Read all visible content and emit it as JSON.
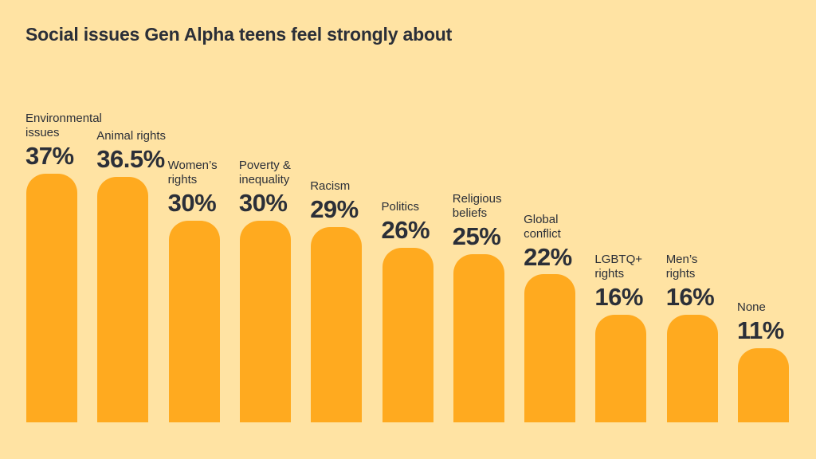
{
  "chart_data": {
    "type": "bar",
    "title": "Social issues Gen Alpha teens feel strongly about",
    "categories": [
      [
        "Environmental",
        "issues"
      ],
      [
        "Animal rights"
      ],
      [
        "Women’s",
        "rights"
      ],
      [
        "Poverty &",
        "inequality"
      ],
      [
        "Racism"
      ],
      [
        "Politics"
      ],
      [
        "Religious",
        "beliefs"
      ],
      [
        "Global",
        "conflict"
      ],
      [
        "LGBTQ+",
        "rights"
      ],
      [
        "Men’s",
        "rights"
      ],
      [
        "None"
      ]
    ],
    "values": [
      37,
      36.5,
      30,
      30,
      29,
      26,
      25,
      22,
      16,
      16,
      11
    ],
    "value_labels": [
      "37%",
      "36.5%",
      "30%",
      "30%",
      "29%",
      "26%",
      "25%",
      "22%",
      "16%",
      "16%",
      "11%"
    ],
    "ylim": [
      0,
      37
    ],
    "xlabel": "",
    "ylabel": "",
    "grid": false,
    "colors": {
      "background": "#FFE3A3",
      "bar": "#FFAA1F",
      "text": "#2b2f38"
    }
  }
}
